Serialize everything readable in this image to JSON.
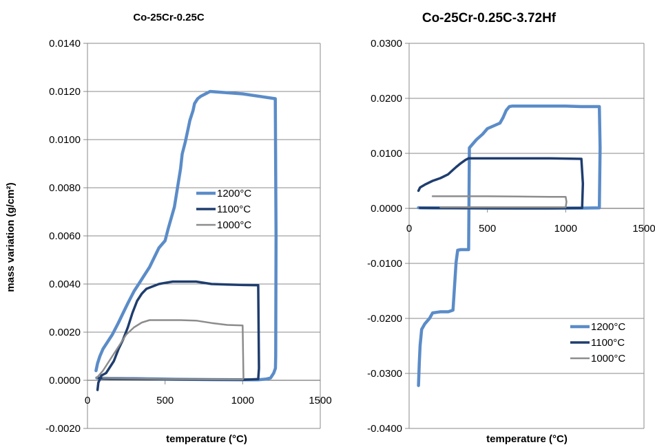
{
  "chart_data": [
    {
      "type": "line",
      "title": "Co-25Cr-0.25C",
      "xlabel": "temperature (°C)",
      "ylabel": "mass variation (g/cm²)",
      "xlim": [
        0,
        1500
      ],
      "ylim": [
        -0.002,
        0.014
      ],
      "xticks": [
        0,
        500,
        1000,
        1500
      ],
      "xtick_labels": [
        "0",
        "500",
        "1000",
        "1500"
      ],
      "yticks": [
        -0.002,
        0,
        0.002,
        0.004,
        0.006,
        0.008,
        0.01,
        0.012,
        0.014
      ],
      "ytick_labels": [
        "-0.0020",
        "0.0000",
        "0.0020",
        "0.0040",
        "0.0060",
        "0.0080",
        "0.0100",
        "0.0120",
        "0.0140"
      ],
      "grid": "horizontal",
      "legend_position": "center-right",
      "series": [
        {
          "name": "1200°C",
          "color": "#5b8cc8",
          "width": 4.5,
          "x": [
            55,
            65,
            80,
            100,
            130,
            160,
            200,
            230,
            260,
            300,
            330,
            360,
            400,
            430,
            460,
            500,
            520,
            560,
            580,
            600,
            610,
            630,
            650,
            660,
            680,
            690,
            710,
            730,
            760,
            790,
            1000,
            1210,
            1215,
            1213,
            1211,
            1200,
            1180,
            1150,
            1100,
            1000,
            800,
            500,
            300,
            150,
            80,
            60
          ],
          "y": [
            0.0004,
            0.0007,
            0.001,
            0.0013,
            0.0016,
            0.0019,
            0.0024,
            0.0028,
            0.0032,
            0.0037,
            0.004,
            0.0043,
            0.0047,
            0.0051,
            0.0055,
            0.0058,
            0.0063,
            0.0072,
            0.008,
            0.0088,
            0.0094,
            0.0099,
            0.0105,
            0.0108,
            0.0112,
            0.0115,
            0.0117,
            0.0118,
            0.0119,
            0.012,
            0.0119,
            0.0117,
            0.006,
            0.001,
            0.0005,
            0.0003,
            0.0001,
            5e-05,
            2e-05,
            2e-05,
            3e-05,
            5e-05,
            7e-05,
            8e-05,
            9e-05,
            0.0001
          ]
        },
        {
          "name": "1100°C",
          "color": "#1f3d6e",
          "width": 3.5,
          "x": [
            65,
            70,
            90,
            120,
            150,
            170,
            200,
            230,
            260,
            290,
            320,
            350,
            380,
            420,
            460,
            500,
            550,
            600,
            700,
            800,
            900,
            1000,
            1100,
            1105,
            1100,
            1000,
            500,
            100,
            70
          ],
          "y": [
            -0.0004,
            -0.0001,
            0.0002,
            0.0003,
            0.0006,
            0.0008,
            0.0013,
            0.0017,
            0.0022,
            0.0028,
            0.0033,
            0.0036,
            0.0038,
            0.0039,
            0.004,
            0.00405,
            0.0041,
            0.0041,
            0.0041,
            0.004,
            0.00398,
            0.00396,
            0.00395,
            0.0005,
            5e-05,
            2e-05,
            4e-05,
            8e-05,
            0.0001
          ]
        },
        {
          "name": "1000°C",
          "color": "#8c8c8c",
          "width": 2.5,
          "x": [
            60,
            100,
            150,
            200,
            250,
            300,
            350,
            400,
            500,
            600,
            700,
            800,
            900,
            1000,
            1005,
            1000,
            500,
            100
          ],
          "y": [
            0.0001,
            0.0004,
            0.0009,
            0.0014,
            0.0019,
            0.0022,
            0.0024,
            0.0025,
            0.0025,
            0.0025,
            0.00248,
            0.00238,
            0.0023,
            0.00228,
            0.0001,
            3e-05,
            5e-05,
            0.0001
          ]
        }
      ]
    },
    {
      "type": "line",
      "title": "Co-25Cr-0.25C-3.72Hf",
      "xlabel": "temperature (°C)",
      "ylabel": "",
      "xlim": [
        0,
        1500
      ],
      "ylim": [
        -0.04,
        0.03
      ],
      "xticks": [
        0,
        500,
        1000,
        1500
      ],
      "xtick_labels": [
        "0",
        "500",
        "1000",
        "1500"
      ],
      "yticks": [
        -0.04,
        -0.03,
        -0.02,
        -0.01,
        0,
        0.01,
        0.02,
        0.03
      ],
      "ytick_labels": [
        "-0.0400",
        "-0.0300",
        "-0.0200",
        "-0.0100",
        "0.0000",
        "0.0100",
        "0.0200",
        "0.0300"
      ],
      "grid": "horizontal",
      "legend_position": "bottom-right",
      "series": [
        {
          "name": "1200°C",
          "color": "#5b8cc8",
          "width": 4.5,
          "x": [
            60,
            65,
            70,
            80,
            100,
            130,
            150,
            200,
            250,
            280,
            300,
            310,
            330,
            380,
            385,
            400,
            430,
            470,
            500,
            540,
            580,
            600,
            620,
            640,
            660,
            700,
            800,
            900,
            1000,
            1100,
            1200,
            1215,
            1220,
            1215,
            1100,
            900,
            700,
            500,
            300,
            150,
            70,
            60
          ],
          "y": [
            -0.0322,
            -0.028,
            -0.025,
            -0.022,
            -0.021,
            -0.02,
            -0.019,
            -0.0188,
            -0.0188,
            -0.0185,
            -0.0098,
            -0.0076,
            -0.0075,
            -0.0075,
            0.011,
            0.0115,
            0.0125,
            0.0135,
            0.0145,
            0.015,
            0.0155,
            0.0165,
            0.0178,
            0.0185,
            0.0186,
            0.0186,
            0.0186,
            0.0186,
            0.0186,
            0.0185,
            0.0185,
            0.0185,
            0.011,
            0.0001,
            5e-05,
            3e-05,
            3e-05,
            5e-05,
            7e-05,
            8e-05,
            0.0001,
            0.00012
          ]
        },
        {
          "name": "1100°C",
          "color": "#1f3d6e",
          "width": 3.5,
          "x": [
            60,
            70,
            100,
            150,
            200,
            250,
            280,
            300,
            330,
            360,
            380,
            500,
            700,
            900,
            1100,
            1110,
            1105,
            900,
            500,
            200,
            70
          ],
          "y": [
            0.0032,
            0.0038,
            0.0043,
            0.005,
            0.0055,
            0.0062,
            0.007,
            0.0075,
            0.0082,
            0.0088,
            0.0091,
            0.0091,
            0.0091,
            0.0091,
            0.009,
            0.0045,
            0.0001,
            3e-05,
            4e-05,
            6e-05,
            0.0001
          ]
        },
        {
          "name": "1000°C",
          "color": "#8c8c8c",
          "width": 2.5,
          "x": [
            150,
            300,
            500,
            700,
            900,
            1000,
            1005,
            1000,
            800,
            500,
            200
          ],
          "y": [
            0.0022,
            0.0022,
            0.0022,
            0.00215,
            0.0021,
            0.0021,
            0.0012,
            0.0002,
            0.0002,
            0.0002,
            0.0002
          ]
        }
      ]
    }
  ]
}
